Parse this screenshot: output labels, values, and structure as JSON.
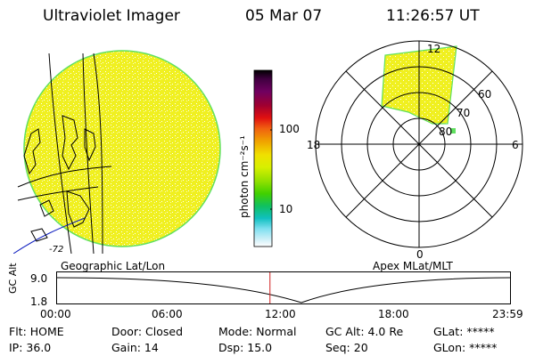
{
  "header": {
    "title": "Ultraviolet Imager",
    "date": "05 Mar 07",
    "time": "11:26:57 UT"
  },
  "colors": {
    "image_fill": "#f0f020",
    "image_edge": "#60e060",
    "image_speckle": "#ffffff",
    "marker": "#d02020",
    "colorbar": [
      "#000000",
      "#400040",
      "#600070",
      "#800040",
      "#b00020",
      "#e01010",
      "#f06010",
      "#f0a000",
      "#f0d000",
      "#f0f000",
      "#d0f000",
      "#90e000",
      "#40d000",
      "#10c060",
      "#10c0c0",
      "#80e0f0",
      "#d0f0f8",
      "#ffffff"
    ]
  },
  "colorbar": {
    "label": "photon cm⁻²s⁻¹",
    "ticks": [
      "100",
      "10"
    ]
  },
  "map_labels": {
    "corner": "-72",
    "geo": "Geographic Lat/Lon"
  },
  "polar": {
    "mlt_labels": {
      "top": "12",
      "left": "18",
      "right": "6",
      "bottom": "0"
    },
    "lat_labels": [
      "60",
      "70",
      "80"
    ],
    "caption": "Apex MLat/MLT"
  },
  "altitude_plot": {
    "ylabel": "GC Alt",
    "y_ticks": [
      "9.0",
      "1.8"
    ],
    "x_ticks": [
      "00:00",
      "06:00",
      "12:00",
      "18:00",
      "23:59"
    ],
    "current_time_frac": 0.47
  },
  "status": {
    "flt": "Flt: HOME",
    "ip": "IP: 36.0",
    "door": "Door: Closed",
    "gain": "Gain: 14",
    "mode": "Mode: Normal",
    "dsp": "Dsp:   15.0",
    "gcalt": "GC Alt: 4.0 Re",
    "seq": "Seq: 20",
    "glat": "GLat: *****",
    "glon": "GLon: *****"
  }
}
